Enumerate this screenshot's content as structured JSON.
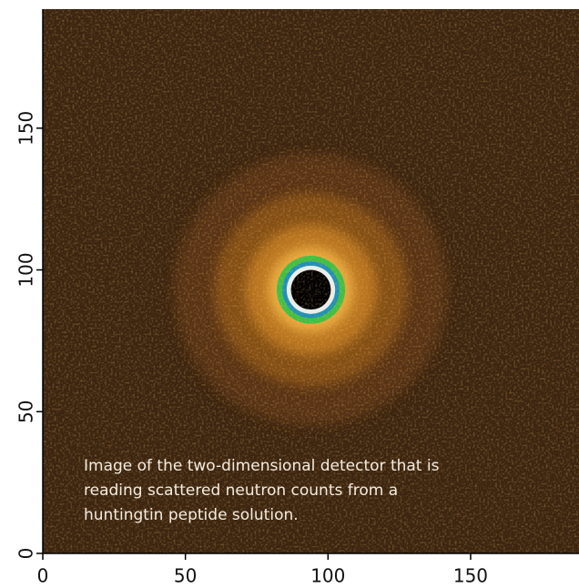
{
  "chart_data": {
    "type": "heatmap",
    "annotation": [
      "Image of the two-dimensional detector that is",
      "reading scattered neutron counts from a",
      "huntingtin peptide solution."
    ],
    "xlim": [
      0,
      188
    ],
    "ylim": [
      0,
      192
    ],
    "xticks": [
      0,
      50,
      100,
      150
    ],
    "yticks": [
      0,
      50,
      100,
      150
    ],
    "background": "#3b2410",
    "center": {
      "x": 94,
      "y": 93
    },
    "rings": [
      {
        "radius": 48,
        "color": "#5c3612"
      },
      {
        "radius": 34,
        "color": "#8a5318"
      },
      {
        "radius": 23,
        "color": "#c27c22"
      },
      {
        "radius": 15,
        "color": "#f2b444"
      },
      {
        "radius": 12,
        "color": "#3fbf45"
      },
      {
        "radius": 10,
        "color": "#1f8fb8"
      },
      {
        "radius": 8.5,
        "color": "#e8f0f0"
      },
      {
        "radius": 7,
        "color": "#000000"
      }
    ]
  }
}
